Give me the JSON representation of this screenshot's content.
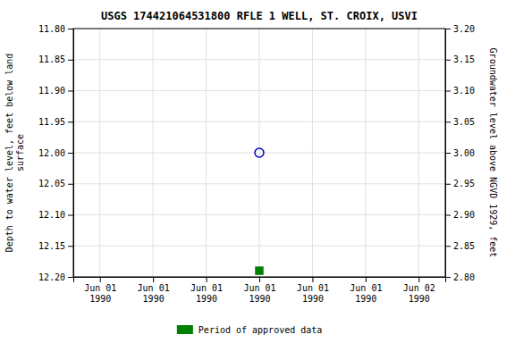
{
  "chart_data": {
    "type": "scatter",
    "title": "USGS 174421064531800 RFLE 1 WELL, ST. CROIX, USVI",
    "ylabel": "Depth to water level, feet below land\nsurface",
    "y2label": "Groundwater level above NGVD 1929, feet",
    "categories": [
      "Jun 01\n1990",
      "Jun 01\n1990",
      "Jun 01\n1990",
      "Jun 01\n1990",
      "Jun 01\n1990",
      "Jun 01\n1990",
      "Jun 02\n1990"
    ],
    "series": [
      {
        "color": "#0000cc",
        "marker": "circle-open",
        "values": [
          null,
          null,
          null,
          12.0,
          null,
          null,
          null
        ]
      },
      {
        "name": "Period of approved data",
        "color": "#008000",
        "marker": "square",
        "values": [
          null,
          null,
          null,
          12.19,
          null,
          null,
          null
        ]
      }
    ],
    "ylim": [
      12.2,
      11.8
    ],
    "yticks": [
      {
        "value": 11.8,
        "label": "11.80"
      },
      {
        "value": 11.85,
        "label": "11.85"
      },
      {
        "value": 11.9,
        "label": "11.90"
      },
      {
        "value": 11.95,
        "label": "11.95"
      },
      {
        "value": 12.0,
        "label": "12.00"
      },
      {
        "value": 12.05,
        "label": "12.05"
      },
      {
        "value": 12.1,
        "label": "12.10"
      },
      {
        "value": 12.15,
        "label": "12.15"
      },
      {
        "value": 12.2,
        "label": "12.20"
      }
    ],
    "y2lim": [
      2.8,
      3.2
    ],
    "y2ticks": [
      {
        "value": 3.2,
        "label": "3.20"
      },
      {
        "value": 3.15,
        "label": "3.15"
      },
      {
        "value": 3.1,
        "label": "3.10"
      },
      {
        "value": 3.05,
        "label": "3.05"
      },
      {
        "value": 3.0,
        "label": "3.00"
      },
      {
        "value": 2.95,
        "label": "2.95"
      },
      {
        "value": 2.9,
        "label": "2.90"
      },
      {
        "value": 2.85,
        "label": "2.85"
      },
      {
        "value": 2.8,
        "label": "2.80"
      }
    ],
    "grid": true,
    "legend": "bottom"
  }
}
